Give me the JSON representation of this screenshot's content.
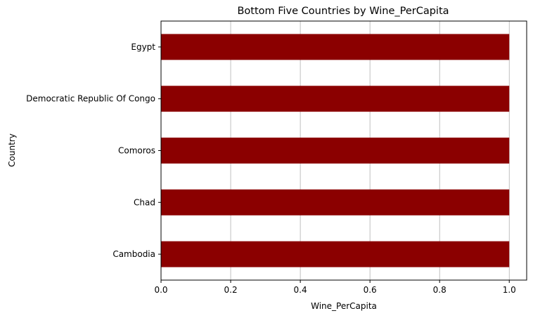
{
  "chart_data": {
    "type": "bar",
    "orientation": "horizontal",
    "title": "Bottom Five Countries by Wine_PerCapita",
    "xlabel": "Wine_PerCapita",
    "ylabel": "Country",
    "categories": [
      "Cambodia",
      "Chad",
      "Comoros",
      "Democratic Republic Of Congo",
      "Egypt"
    ],
    "values": [
      1,
      1,
      1,
      1,
      1
    ],
    "xlim": [
      0,
      1.05
    ],
    "xticks": [
      "0.0",
      "0.2",
      "0.4",
      "0.6",
      "0.8",
      "1.0"
    ],
    "grid": "x",
    "bar_color": "#8b0000"
  }
}
